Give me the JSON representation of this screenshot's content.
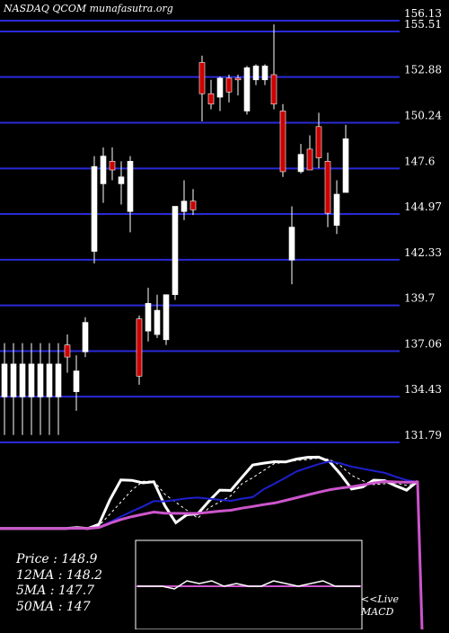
{
  "title": "NASDAQ QCOM munafasutra.org",
  "stats": [
    {
      "label": "Price",
      "value": "148.9"
    },
    {
      "label": "12MA",
      "value": "148.2"
    },
    {
      "label": "5MA",
      "value": "147.7"
    },
    {
      "label": "50MA",
      "value": "147"
    }
  ],
  "macd_label": [
    "<<Live",
    "MACD"
  ],
  "colors": {
    "background": "#000000",
    "gridline": "#2a2ad8",
    "up_candle": "#ffffff",
    "down_candle": "#cc0000",
    "ma_short": "#ffffff",
    "ma_mid": "#1f1fd0",
    "ma_long": "#cc55cc"
  },
  "chart_data": {
    "type": "candlestick",
    "ylim": [
      131.79,
      156.13
    ],
    "y_ticks": [
      "156.13",
      "155.51",
      "152.88",
      "150.24",
      "147.6",
      "144.97",
      "142.33",
      "139.7",
      "137.06",
      "134.43",
      "131.79"
    ],
    "y_tick_values": [
      156.13,
      155.51,
      152.88,
      150.24,
      147.6,
      144.97,
      142.33,
      139.7,
      137.06,
      134.43,
      131.79
    ],
    "candles": [
      {
        "o": 134.0,
        "h": 137.1,
        "l": 131.8,
        "c": 135.9,
        "color": "up"
      },
      {
        "o": 134.0,
        "h": 137.1,
        "l": 131.8,
        "c": 135.9,
        "color": "up"
      },
      {
        "o": 134.0,
        "h": 137.1,
        "l": 131.8,
        "c": 135.9,
        "color": "up"
      },
      {
        "o": 134.0,
        "h": 137.1,
        "l": 131.8,
        "c": 135.9,
        "color": "up"
      },
      {
        "o": 134.0,
        "h": 137.1,
        "l": 131.8,
        "c": 135.9,
        "color": "up"
      },
      {
        "o": 134.0,
        "h": 137.1,
        "l": 131.8,
        "c": 135.9,
        "color": "up"
      },
      {
        "o": 134.0,
        "h": 137.1,
        "l": 131.8,
        "c": 135.9,
        "color": "up"
      },
      {
        "o": 137.0,
        "h": 137.6,
        "l": 135.4,
        "c": 136.3,
        "color": "down"
      },
      {
        "o": 134.3,
        "h": 136.4,
        "l": 133.2,
        "c": 135.5,
        "color": "up"
      },
      {
        "o": 136.6,
        "h": 138.6,
        "l": 136.3,
        "c": 138.3,
        "color": "up"
      },
      {
        "o": 142.4,
        "h": 147.9,
        "l": 141.7,
        "c": 147.3,
        "color": "up"
      },
      {
        "o": 146.3,
        "h": 148.4,
        "l": 145.2,
        "c": 147.9,
        "color": "up"
      },
      {
        "o": 147.6,
        "h": 148.4,
        "l": 146.5,
        "c": 147.1,
        "color": "down"
      },
      {
        "o": 146.3,
        "h": 147.6,
        "l": 145.1,
        "c": 146.7,
        "color": "up"
      },
      {
        "o": 144.7,
        "h": 147.9,
        "l": 143.5,
        "c": 147.6,
        "color": "up"
      },
      {
        "o": 138.5,
        "h": 138.7,
        "l": 134.7,
        "c": 135.2,
        "color": "down"
      },
      {
        "o": 137.8,
        "h": 140.3,
        "l": 137.2,
        "c": 139.4,
        "color": "up"
      },
      {
        "o": 137.6,
        "h": 139.9,
        "l": 137.4,
        "c": 139.0,
        "color": "up"
      },
      {
        "o": 137.3,
        "h": 139.9,
        "l": 137.0,
        "c": 139.9,
        "color": "up"
      },
      {
        "o": 139.9,
        "h": 145.0,
        "l": 139.6,
        "c": 145.0,
        "color": "up"
      },
      {
        "o": 144.7,
        "h": 146.5,
        "l": 144.2,
        "c": 145.3,
        "color": "up"
      },
      {
        "o": 145.3,
        "h": 146.0,
        "l": 144.5,
        "c": 144.8,
        "color": "down"
      },
      {
        "o": 153.3,
        "h": 153.7,
        "l": 149.9,
        "c": 151.5,
        "color": "down"
      },
      {
        "o": 151.5,
        "h": 152.3,
        "l": 150.6,
        "c": 150.9,
        "color": "down"
      },
      {
        "o": 151.3,
        "h": 152.5,
        "l": 150.5,
        "c": 152.4,
        "color": "up"
      },
      {
        "o": 152.4,
        "h": 152.6,
        "l": 151.0,
        "c": 151.6,
        "color": "down"
      },
      {
        "o": 152.4,
        "h": 152.6,
        "l": 151.4,
        "c": 152.3,
        "color": "down"
      },
      {
        "o": 150.5,
        "h": 153.1,
        "l": 150.3,
        "c": 153.0,
        "color": "up"
      },
      {
        "o": 152.3,
        "h": 153.2,
        "l": 152.0,
        "c": 153.1,
        "color": "up"
      },
      {
        "o": 152.3,
        "h": 153.2,
        "l": 152.0,
        "c": 153.1,
        "color": "up"
      },
      {
        "o": 152.6,
        "h": 155.5,
        "l": 150.6,
        "c": 150.9,
        "color": "down"
      },
      {
        "o": 150.5,
        "h": 150.9,
        "l": 146.7,
        "c": 147.0,
        "color": "down"
      },
      {
        "o": 141.9,
        "h": 145.0,
        "l": 140.5,
        "c": 143.8,
        "color": "up"
      },
      {
        "o": 147.0,
        "h": 148.6,
        "l": 146.9,
        "c": 148.0,
        "color": "up"
      },
      {
        "o": 148.3,
        "h": 149.1,
        "l": 147.1,
        "c": 147.1,
        "color": "down"
      },
      {
        "o": 149.6,
        "h": 150.4,
        "l": 147.2,
        "c": 147.8,
        "color": "down"
      },
      {
        "o": 147.6,
        "h": 148.1,
        "l": 143.8,
        "c": 144.6,
        "color": "down"
      },
      {
        "o": 143.9,
        "h": 146.5,
        "l": 143.4,
        "c": 145.7,
        "color": "up"
      },
      {
        "o": 145.8,
        "h": 149.7,
        "l": 145.8,
        "c": 148.9,
        "color": "up"
      }
    ],
    "macd_box": {
      "series": [
        0.0,
        0.0,
        0.0,
        -0.05,
        0.1,
        0.05,
        0.1,
        0.0,
        0.05,
        0.0,
        0.0,
        0.1,
        0.05,
        0.0,
        0.05,
        0.1,
        0.0,
        0.0,
        0.0
      ]
    }
  }
}
